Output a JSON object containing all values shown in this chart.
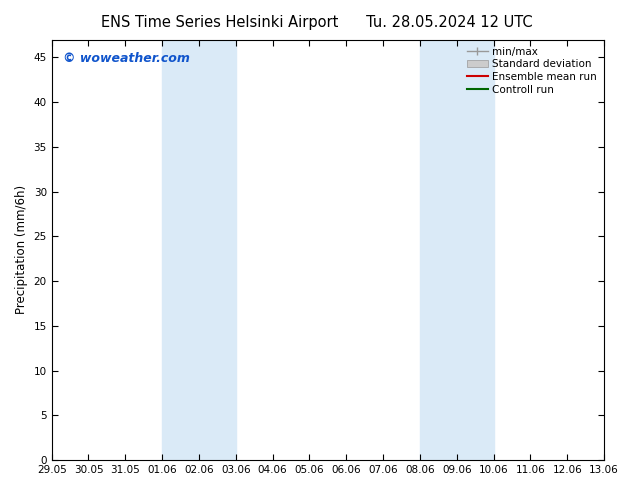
{
  "title_left": "ENS Time Series Helsinki Airport",
  "title_right": "Tu. 28.05.2024 12 UTC",
  "ylabel": "Precipitation (mm/6h)",
  "ylim": [
    0,
    47
  ],
  "yticks": [
    0,
    5,
    10,
    15,
    20,
    25,
    30,
    35,
    40,
    45
  ],
  "xlim": [
    0,
    15
  ],
  "x_labels": [
    "29.05",
    "30.05",
    "31.05",
    "01.06",
    "02.06",
    "03.06",
    "04.06",
    "05.06",
    "06.06",
    "07.06",
    "08.06",
    "09.06",
    "10.06",
    "11.06",
    "12.06",
    "13.06"
  ],
  "x_positions": [
    0,
    1,
    2,
    3,
    4,
    5,
    6,
    7,
    8,
    9,
    10,
    11,
    12,
    13,
    14,
    15
  ],
  "shaded_bands": [
    {
      "xmin": 3,
      "xmax": 5,
      "color": "#daeaf7"
    },
    {
      "xmin": 10,
      "xmax": 12,
      "color": "#daeaf7"
    }
  ],
  "legend_items": [
    {
      "label": "min/max",
      "type": "minmax"
    },
    {
      "label": "Standard deviation",
      "type": "stddev"
    },
    {
      "label": "Ensemble mean run",
      "type": "line",
      "color": "#cc0000"
    },
    {
      "label": "Controll run",
      "type": "line",
      "color": "#006600"
    }
  ],
  "watermark": "© woweather.com",
  "watermark_color": "#1155cc",
  "background_color": "#ffffff",
  "title_fontsize": 10.5,
  "axis_fontsize": 7.5,
  "ylabel_fontsize": 8.5,
  "legend_fontsize": 7.5,
  "watermark_fontsize": 9
}
